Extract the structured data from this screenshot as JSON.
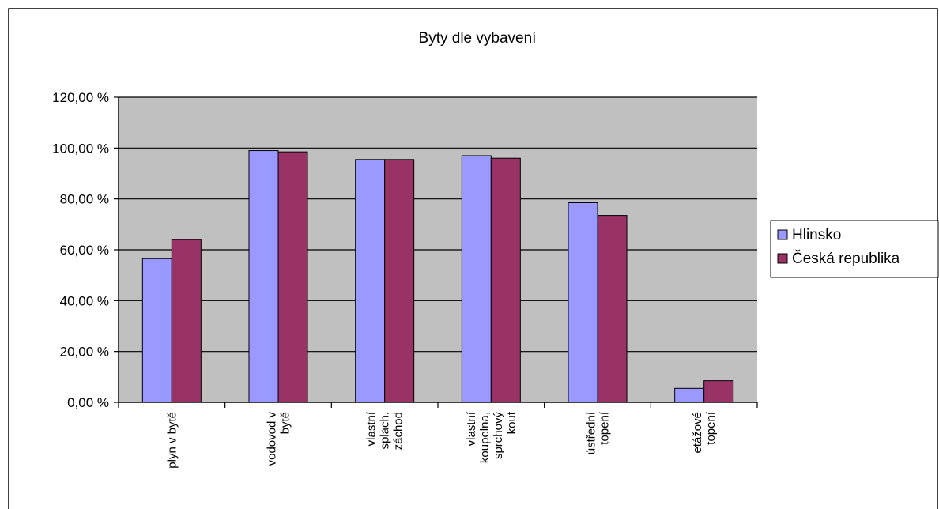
{
  "chart_data": {
    "type": "bar",
    "title": "Byty dle vybavení",
    "categories": [
      [
        "plyn v bytě"
      ],
      [
        "vodovod v",
        "bytě"
      ],
      [
        "vlastní",
        "splach.",
        "záchod"
      ],
      [
        "vlastní",
        "koupelna,",
        "sprchový",
        "kout"
      ],
      [
        "ústřední",
        "topení"
      ],
      [
        "etážové",
        "topení"
      ]
    ],
    "series": [
      {
        "name": "Hlinsko",
        "values": [
          56.5,
          99.0,
          95.5,
          97.0,
          78.5,
          5.5
        ]
      },
      {
        "name": "Česká republika",
        "values": [
          64.0,
          98.5,
          95.5,
          96.0,
          73.5,
          8.5
        ]
      }
    ],
    "y_ticks": [
      "0,00 %",
      "20,00 %",
      "40,00 %",
      "60,00 %",
      "80,00 %",
      "100,00 %",
      "120,00 %"
    ],
    "ylim": [
      0,
      120
    ],
    "grid": true,
    "legend_position": "right",
    "colors": {
      "plot_background": "#c0c0c0",
      "series": [
        "#9999ff",
        "#993366"
      ],
      "gridline": "#000000"
    }
  }
}
